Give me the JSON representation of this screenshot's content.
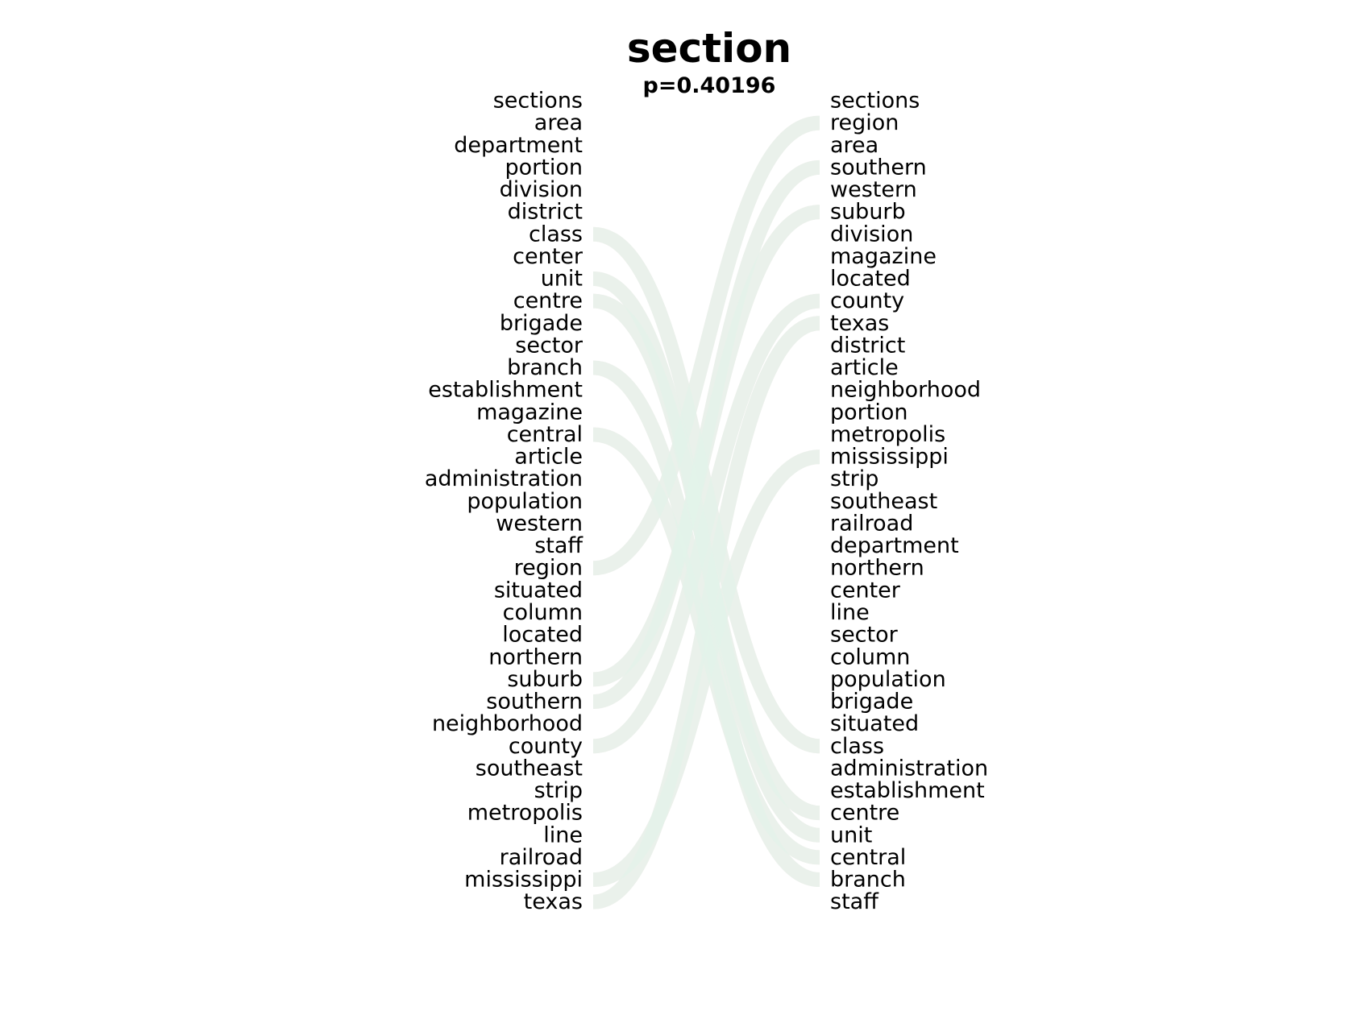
{
  "title": "section",
  "subtitle": "p=0.40196",
  "chart_data": {
    "type": "bump",
    "left": [
      "sections",
      "area",
      "department",
      "portion",
      "division",
      "district",
      "class",
      "center",
      "unit",
      "centre",
      "brigade",
      "sector",
      "branch",
      "establishment",
      "magazine",
      "central",
      "article",
      "administration",
      "population",
      "western",
      "staff",
      "region",
      "situated",
      "column",
      "located",
      "northern",
      "suburb",
      "southern",
      "neighborhood",
      "county",
      "southeast",
      "strip",
      "metropolis",
      "line",
      "railroad",
      "mississippi",
      "texas"
    ],
    "right": [
      "sections",
      "region",
      "area",
      "southern",
      "western",
      "suburb",
      "division",
      "magazine",
      "located",
      "county",
      "texas",
      "district",
      "article",
      "neighborhood",
      "portion",
      "metropolis",
      "mississippi",
      "strip",
      "southeast",
      "railroad",
      "department",
      "northern",
      "center",
      "line",
      "sector",
      "column",
      "population",
      "brigade",
      "situated",
      "class",
      "administration",
      "establishment",
      "centre",
      "unit",
      "central",
      "branch",
      "staff"
    ],
    "highlighted_left": [
      "class",
      "unit",
      "centre",
      "branch",
      "central",
      "region",
      "suburb",
      "southern",
      "county",
      "mississippi",
      "texas"
    ],
    "highlighted_right": [
      "region",
      "southern",
      "suburb",
      "county",
      "texas",
      "mississippi",
      "class",
      "centre",
      "unit",
      "central",
      "branch"
    ],
    "left_color": "#fbe3e6",
    "right_color": "#e2f4ea"
  }
}
